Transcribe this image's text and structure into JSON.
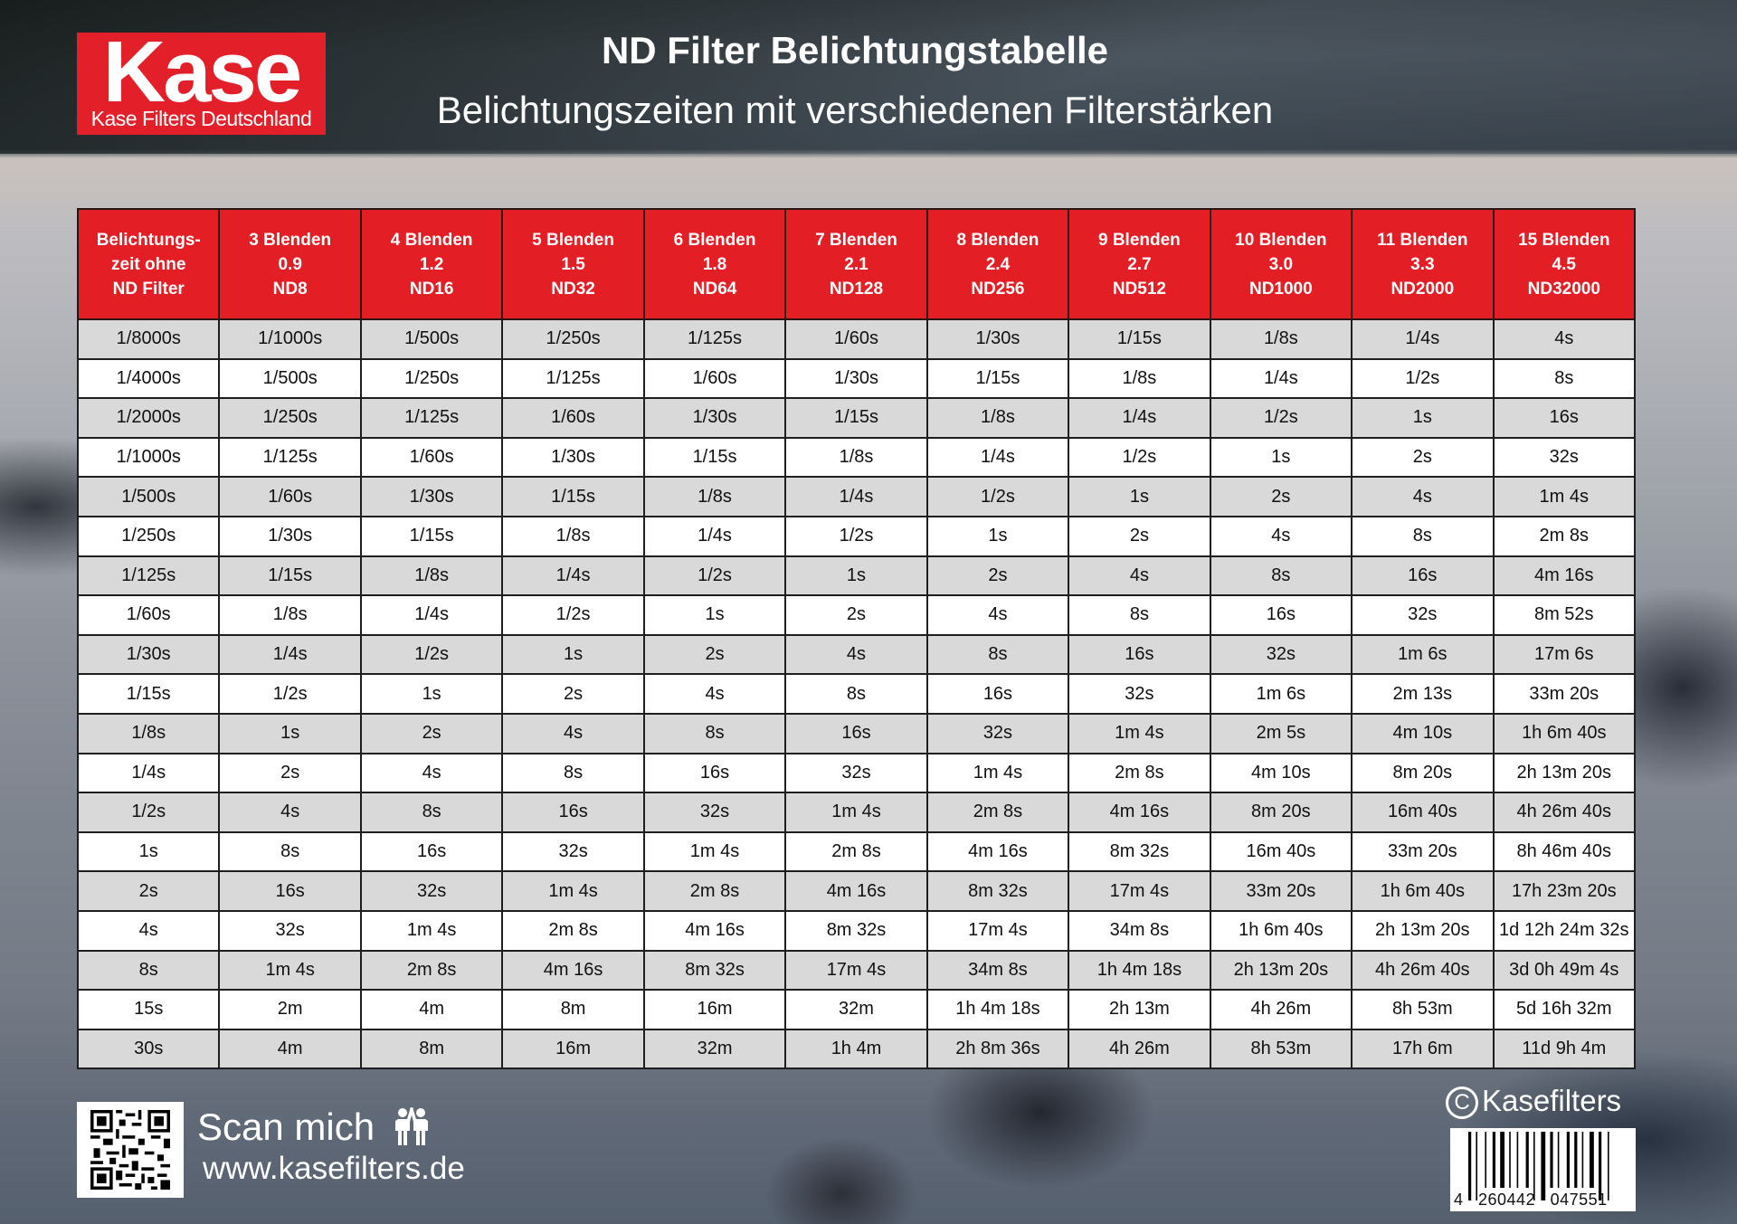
{
  "brand": {
    "logo_text": "Kase",
    "logo_subtext": "Kase Filters Deutschland",
    "accent_color": "#e31e24"
  },
  "header": {
    "title": "ND Filter Belichtungstabelle",
    "subtitle": "Belichtungszeiten mit verschiedenen Filterstärken"
  },
  "table": {
    "columns": [
      {
        "line1": "Belichtungs-",
        "line2": "zeit ohne",
        "line3": "ND Filter"
      },
      {
        "line1": "3 Blenden",
        "line2": "0.9",
        "line3": "ND8"
      },
      {
        "line1": "4 Blenden",
        "line2": "1.2",
        "line3": "ND16"
      },
      {
        "line1": "5 Blenden",
        "line2": "1.5",
        "line3": "ND32"
      },
      {
        "line1": "6 Blenden",
        "line2": "1.8",
        "line3": "ND64"
      },
      {
        "line1": "7 Blenden",
        "line2": "2.1",
        "line3": "ND128"
      },
      {
        "line1": "8 Blenden",
        "line2": "2.4",
        "line3": "ND256"
      },
      {
        "line1": "9 Blenden",
        "line2": "2.7",
        "line3": "ND512"
      },
      {
        "line1": "10 Blenden",
        "line2": "3.0",
        "line3": "ND1000"
      },
      {
        "line1": "11 Blenden",
        "line2": "3.3",
        "line3": "ND2000"
      },
      {
        "line1": "15 Blenden",
        "line2": "4.5",
        "line3": "ND32000"
      }
    ],
    "rows": [
      [
        "1/8000s",
        "1/1000s",
        "1/500s",
        "1/250s",
        "1/125s",
        "1/60s",
        "1/30s",
        "1/15s",
        "1/8s",
        "1/4s",
        "4s"
      ],
      [
        "1/4000s",
        "1/500s",
        "1/250s",
        "1/125s",
        "1/60s",
        "1/30s",
        "1/15s",
        "1/8s",
        "1/4s",
        "1/2s",
        "8s"
      ],
      [
        "1/2000s",
        "1/250s",
        "1/125s",
        "1/60s",
        "1/30s",
        "1/15s",
        "1/8s",
        "1/4s",
        "1/2s",
        "1s",
        "16s"
      ],
      [
        "1/1000s",
        "1/125s",
        "1/60s",
        "1/30s",
        "1/15s",
        "1/8s",
        "1/4s",
        "1/2s",
        "1s",
        "2s",
        "32s"
      ],
      [
        "1/500s",
        "1/60s",
        "1/30s",
        "1/15s",
        "1/8s",
        "1/4s",
        "1/2s",
        "1s",
        "2s",
        "4s",
        "1m 4s"
      ],
      [
        "1/250s",
        "1/30s",
        "1/15s",
        "1/8s",
        "1/4s",
        "1/2s",
        "1s",
        "2s",
        "4s",
        "8s",
        "2m 8s"
      ],
      [
        "1/125s",
        "1/15s",
        "1/8s",
        "1/4s",
        "1/2s",
        "1s",
        "2s",
        "4s",
        "8s",
        "16s",
        "4m 16s"
      ],
      [
        "1/60s",
        "1/8s",
        "1/4s",
        "1/2s",
        "1s",
        "2s",
        "4s",
        "8s",
        "16s",
        "32s",
        "8m 52s"
      ],
      [
        "1/30s",
        "1/4s",
        "1/2s",
        "1s",
        "2s",
        "4s",
        "8s",
        "16s",
        "32s",
        "1m 6s",
        "17m 6s"
      ],
      [
        "1/15s",
        "1/2s",
        "1s",
        "2s",
        "4s",
        "8s",
        "16s",
        "32s",
        "1m 6s",
        "2m 13s",
        "33m 20s"
      ],
      [
        "1/8s",
        "1s",
        "2s",
        "4s",
        "8s",
        "16s",
        "32s",
        "1m 4s",
        "2m 5s",
        "4m 10s",
        "1h 6m 40s"
      ],
      [
        "1/4s",
        "2s",
        "4s",
        "8s",
        "16s",
        "32s",
        "1m 4s",
        "2m 8s",
        "4m 10s",
        "8m 20s",
        "2h 13m 20s"
      ],
      [
        "1/2s",
        "4s",
        "8s",
        "16s",
        "32s",
        "1m 4s",
        "2m 8s",
        "4m 16s",
        "8m 20s",
        "16m 40s",
        "4h 26m 40s"
      ],
      [
        "1s",
        "8s",
        "16s",
        "32s",
        "1m 4s",
        "2m 8s",
        "4m 16s",
        "8m 32s",
        "16m 40s",
        "33m 20s",
        "8h 46m 40s"
      ],
      [
        "2s",
        "16s",
        "32s",
        "1m 4s",
        "2m 8s",
        "4m 16s",
        "8m 32s",
        "17m 4s",
        "33m 20s",
        "1h 6m 40s",
        "17h 23m 20s"
      ],
      [
        "4s",
        "32s",
        "1m 4s",
        "2m 8s",
        "4m 16s",
        "8m 32s",
        "17m 4s",
        "34m 8s",
        "1h 6m 40s",
        "2h 13m 20s",
        "1d 12h 24m 32s"
      ],
      [
        "8s",
        "1m 4s",
        "2m 8s",
        "4m 16s",
        "8m 32s",
        "17m 4s",
        "34m 8s",
        "1h 4m 18s",
        "2h 13m 20s",
        "4h 26m 40s",
        "3d 0h 49m 4s"
      ],
      [
        "15s",
        "2m",
        "4m",
        "8m",
        "16m",
        "32m",
        "1h 4m 18s",
        "2h 13m",
        "4h 26m",
        "8h 53m",
        "5d 16h 32m"
      ],
      [
        "30s",
        "4m",
        "8m",
        "16m",
        "32m",
        "1h 4m",
        "2h 8m 36s",
        "4h 26m",
        "8h 53m",
        "17h 6m",
        "11d 9h 4m"
      ]
    ]
  },
  "footer": {
    "qr_icon": "qr-code",
    "scan_label": "Scan mich",
    "scan_icon": "high-five-people-icon",
    "website": "www.kasefilters.de",
    "copyright_symbol": "C",
    "copyright_text": "Kasefilters",
    "barcode_number": "4   260442   047551"
  }
}
